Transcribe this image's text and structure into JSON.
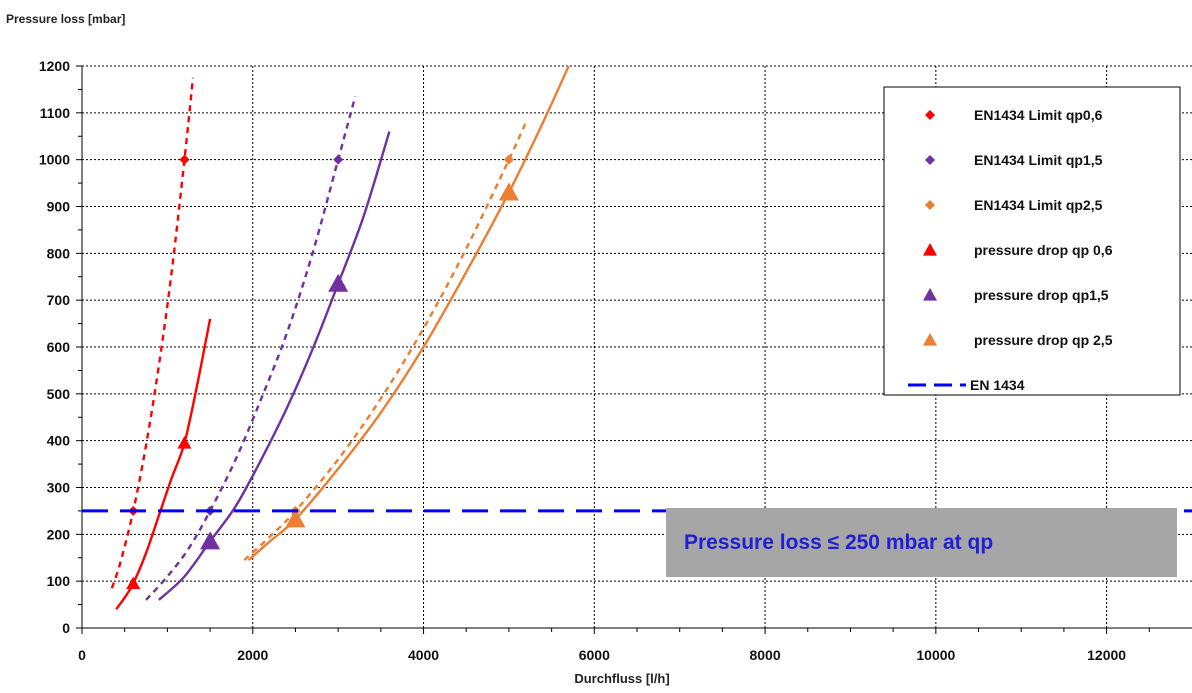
{
  "chart_data": {
    "type": "line",
    "title": "",
    "xlabel": "Durchfluss  [l/h]",
    "ylabel": "Pressure loss [mbar]",
    "xlim": [
      0,
      13000
    ],
    "ylim": [
      0,
      1200
    ],
    "xticks": [
      0,
      2000,
      4000,
      6000,
      8000,
      10000,
      12000
    ],
    "yticks": [
      0,
      100,
      200,
      300,
      400,
      500,
      600,
      700,
      800,
      900,
      1000,
      1100,
      1200
    ],
    "grid": true,
    "legend_position": "top-right",
    "series": [
      {
        "name": "EN1434 Limit qp0,6",
        "color": "#ff0000",
        "marker": "diamond",
        "line": "dashed",
        "points": [
          [
            600,
            250
          ],
          [
            1200,
            1000
          ]
        ],
        "curve": [
          [
            350,
            85
          ],
          [
            450,
            140
          ],
          [
            600,
            250
          ],
          [
            750,
            390
          ],
          [
            900,
            560
          ],
          [
            1050,
            760
          ],
          [
            1200,
            1000
          ],
          [
            1300,
            1175
          ]
        ]
      },
      {
        "name": "EN1434 Limit qp1,5",
        "color": "#7030a0",
        "marker": "diamond",
        "line": "dashed",
        "points": [
          [
            1500,
            250
          ],
          [
            3000,
            1000
          ]
        ],
        "curve": [
          [
            750,
            60
          ],
          [
            1000,
            110
          ],
          [
            1250,
            170
          ],
          [
            1500,
            250
          ],
          [
            1800,
            360
          ],
          [
            2100,
            490
          ],
          [
            2400,
            630
          ],
          [
            2700,
            800
          ],
          [
            3000,
            1000
          ],
          [
            3200,
            1135
          ]
        ]
      },
      {
        "name": "EN1434 Limit qp2,5",
        "color": "#ed7d31",
        "marker": "diamond",
        "line": "dashed",
        "points": [
          [
            2500,
            250
          ],
          [
            5000,
            1000
          ]
        ],
        "curve": [
          [
            1900,
            145
          ],
          [
            2200,
            195
          ],
          [
            2500,
            250
          ],
          [
            3000,
            360
          ],
          [
            3500,
            490
          ],
          [
            4000,
            640
          ],
          [
            4500,
            810
          ],
          [
            5000,
            1000
          ],
          [
            5200,
            1080
          ]
        ]
      },
      {
        "name": "pressure drop qp 0,6",
        "color": "#ff0000",
        "marker": "triangle",
        "line": "solid",
        "points": [
          [
            600,
            95
          ],
          [
            1200,
            395
          ]
        ],
        "curve": [
          [
            400,
            40
          ],
          [
            500,
            65
          ],
          [
            600,
            95
          ],
          [
            750,
            160
          ],
          [
            900,
            240
          ],
          [
            1050,
            320
          ],
          [
            1200,
            395
          ],
          [
            1350,
            520
          ],
          [
            1500,
            660
          ]
        ]
      },
      {
        "name": "pressure drop qp1,5",
        "color": "#7030a0",
        "marker": "triangle",
        "line": "solid",
        "points": [
          [
            1500,
            185
          ],
          [
            3000,
            735
          ]
        ],
        "curve": [
          [
            900,
            60
          ],
          [
            1200,
            110
          ],
          [
            1500,
            185
          ],
          [
            1800,
            260
          ],
          [
            2100,
            360
          ],
          [
            2400,
            470
          ],
          [
            2700,
            595
          ],
          [
            3000,
            735
          ],
          [
            3300,
            880
          ],
          [
            3600,
            1060
          ]
        ]
      },
      {
        "name": "pressure drop qp 2,5",
        "color": "#ed7d31",
        "marker": "triangle",
        "line": "solid",
        "points": [
          [
            2500,
            232
          ],
          [
            5000,
            930
          ]
        ],
        "curve": [
          [
            1950,
            145
          ],
          [
            2200,
            185
          ],
          [
            2500,
            232
          ],
          [
            3000,
            340
          ],
          [
            3500,
            460
          ],
          [
            4000,
            600
          ],
          [
            4500,
            760
          ],
          [
            5000,
            930
          ],
          [
            5400,
            1080
          ],
          [
            5700,
            1200
          ]
        ]
      },
      {
        "name": "EN 1434",
        "color": "#0000ff",
        "marker": "none",
        "line": "long-dash",
        "curve": [
          [
            0,
            250
          ],
          [
            13000,
            250
          ]
        ]
      }
    ],
    "annotations": [
      {
        "text": "Pressure loss ≤ 250 mbar at qp"
      }
    ]
  }
}
